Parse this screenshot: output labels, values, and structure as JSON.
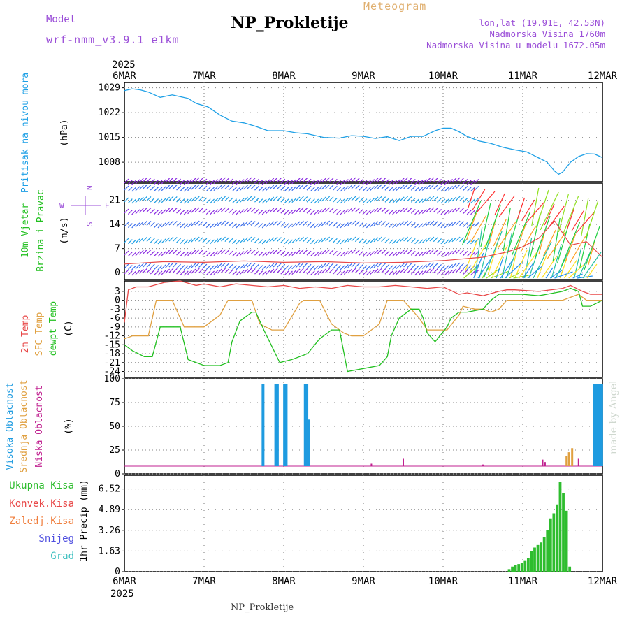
{
  "header": {
    "title": "NP_Prokletije",
    "subtitle": "Meteogram",
    "model_label": "Model",
    "model_name": "wrf-nmm_v3.9.1  e1km",
    "lonlat": "lon,lat (19.91E, 42.53N)",
    "elevation": "Nadmorska Visina 1760m",
    "model_elevation": "Nadmorska Visina u modelu 1672.05m",
    "footer": "NP_Prokletije",
    "watermark": "made by Angel"
  },
  "time_axis": {
    "year": "2025",
    "labels": [
      "6MAR",
      "7MAR",
      "8MAR",
      "9MAR",
      "10MAR",
      "11MAR",
      "12MAR"
    ]
  },
  "colors": {
    "pressure": "#1ea0e6",
    "temp2m": "#e84848",
    "sfc_temp": "#e0a040",
    "dewpoint": "#22c020",
    "high_cloud": "#1e9be0",
    "mid_cloud": "#e0a040",
    "low_cloud": "#c02090",
    "precip": "#2ebd2e",
    "wind_label": "#9b4fd8"
  },
  "chart_data": [
    {
      "type": "line",
      "panel": "pressure",
      "label_main": "Pritisak na nivou mora",
      "unit": "(hPa)",
      "yticks": [
        1029,
        1022,
        1015,
        1008
      ],
      "ylim": [
        1002.5,
        1030.5
      ],
      "x_days": [
        0,
        0.1,
        0.2,
        0.3,
        0.45,
        0.6,
        0.8,
        0.9,
        1.05,
        1.2,
        1.35,
        1.5,
        1.65,
        1.8,
        2.0,
        2.15,
        2.3,
        2.5,
        2.7,
        2.85,
        3.0,
        3.15,
        3.3,
        3.45,
        3.6,
        3.75,
        3.9,
        4.0,
        4.1,
        4.2,
        4.3,
        4.45,
        4.6,
        4.75,
        4.9,
        5.05,
        5.2,
        5.3,
        5.4,
        5.45,
        5.5,
        5.6,
        5.7,
        5.8,
        5.9,
        6.0
      ],
      "values": [
        1028.2,
        1028.7,
        1028.4,
        1027.8,
        1026.3,
        1027.0,
        1026.0,
        1024.6,
        1023.6,
        1021.3,
        1019.6,
        1019.1,
        1018.1,
        1016.9,
        1016.9,
        1016.3,
        1016.0,
        1015.0,
        1014.8,
        1015.5,
        1015.3,
        1014.7,
        1015.2,
        1014.1,
        1015.3,
        1015.3,
        1016.9,
        1017.6,
        1017.6,
        1016.6,
        1015.3,
        1014.0,
        1013.3,
        1012.2,
        1011.5,
        1010.9,
        1009.2,
        1008.1,
        1005.5,
        1004.6,
        1005.2,
        1008.0,
        1009.6,
        1010.4,
        1010.3,
        1009.3
      ]
    },
    {
      "type": "line",
      "panel": "wind",
      "label_main": "10m Vjetar",
      "label_sub": "Brzina i Pravac",
      "unit": "(m/s)",
      "compass": "N  W<-|->E  S",
      "yticks": [
        0,
        7,
        14,
        21
      ],
      "ylim": [
        -2,
        26
      ],
      "x_days": [
        0,
        0.5,
        1.0,
        1.5,
        2.0,
        2.5,
        3.0,
        3.5,
        4.0,
        4.5,
        4.8,
        5.0,
        5.2,
        5.4,
        5.6,
        5.8,
        6.0
      ],
      "values": [
        2.5,
        3.2,
        3.0,
        3.4,
        3.0,
        3.2,
        2.8,
        3.0,
        3.5,
        4.5,
        6.0,
        7.5,
        10.0,
        15.0,
        8.0,
        9.0,
        4.5
      ]
    },
    {
      "type": "line",
      "panel": "temperature",
      "series_labels": [
        "2m Temp",
        "SFC Temp",
        "dewpt Temp"
      ],
      "unit": "(C)",
      "yticks": [
        3,
        0,
        -3,
        -6,
        -9,
        -12,
        -15,
        -18,
        -21,
        -24
      ],
      "ylim": [
        -26,
        6.5
      ],
      "series": [
        {
          "name": "2m Temp",
          "x_days": [
            0,
            0.05,
            0.15,
            0.3,
            0.5,
            0.7,
            0.9,
            1.0,
            1.2,
            1.4,
            1.6,
            1.8,
            2.0,
            2.2,
            2.4,
            2.6,
            2.8,
            3.0,
            3.2,
            3.4,
            3.6,
            3.8,
            4.0,
            4.2,
            4.3,
            4.5,
            4.7,
            4.8,
            4.9,
            5.2,
            5.5,
            5.6,
            5.75,
            5.85,
            6.0
          ],
          "values": [
            -7.5,
            3.5,
            4.5,
            4.5,
            6.0,
            6.5,
            5.0,
            5.5,
            4.5,
            5.5,
            5.0,
            4.5,
            5.0,
            4.0,
            4.5,
            4.0,
            5.0,
            4.5,
            4.5,
            5.0,
            4.5,
            4.0,
            4.5,
            2.0,
            2.5,
            1.5,
            3.0,
            3.5,
            3.5,
            3.0,
            4.0,
            5.0,
            3.0,
            2.0,
            2.0
          ]
        },
        {
          "name": "SFC Temp",
          "x_days": [
            0,
            0.1,
            0.2,
            0.3,
            0.4,
            0.6,
            0.75,
            0.85,
            1.0,
            1.2,
            1.3,
            1.45,
            1.6,
            1.7,
            1.85,
            2.0,
            2.2,
            2.25,
            2.45,
            2.6,
            2.75,
            2.85,
            3.0,
            3.2,
            3.3,
            3.5,
            3.7,
            3.8,
            3.9,
            4.05,
            4.2,
            4.25,
            4.4,
            4.5,
            4.6,
            4.7,
            4.8,
            5.0,
            5.3,
            5.5,
            5.6,
            5.7,
            5.8,
            5.9,
            6.0
          ],
          "values": [
            -13,
            -12,
            -12,
            -12,
            0,
            0,
            -9,
            -9,
            -9,
            -5,
            0,
            0,
            0,
            -8,
            -10,
            -10,
            -1,
            0,
            0,
            -8,
            -11,
            -12,
            -12,
            -8,
            0,
            0,
            -6,
            -10,
            -10,
            -10,
            -5,
            -2,
            -3,
            -3,
            -4,
            -3,
            0,
            0,
            0,
            0,
            1,
            2,
            0,
            0,
            0
          ]
        },
        {
          "name": "dewpt Temp",
          "x_days": [
            0,
            0.1,
            0.25,
            0.35,
            0.45,
            0.6,
            0.7,
            0.8,
            1.0,
            1.2,
            1.3,
            1.35,
            1.45,
            1.6,
            1.65,
            1.75,
            1.95,
            2.1,
            2.2,
            2.3,
            2.45,
            2.6,
            2.7,
            2.8,
            3.0,
            3.2,
            3.3,
            3.35,
            3.45,
            3.6,
            3.7,
            3.75,
            3.8,
            3.9,
            4.05,
            4.1,
            4.2,
            4.3,
            4.5,
            4.6,
            4.7,
            4.8,
            5.0,
            5.2,
            5.3,
            5.5,
            5.6,
            5.7,
            5.75,
            5.85,
            6.0
          ],
          "values": [
            -15,
            -17,
            -19,
            -19,
            -9,
            -9,
            -9,
            -20,
            -22,
            -22,
            -21,
            -14,
            -7,
            -4,
            -4,
            -10,
            -21,
            -20,
            -19,
            -18,
            -13,
            -10,
            -10,
            -24,
            -23,
            -22,
            -19,
            -12,
            -6,
            -3,
            -3,
            -6,
            -11,
            -14,
            -9,
            -6,
            -4,
            -4,
            -3,
            0,
            2,
            2,
            2,
            1.5,
            2,
            3,
            4,
            3,
            -2,
            -2,
            0
          ]
        }
      ]
    },
    {
      "type": "bar",
      "panel": "clouds",
      "series_labels": [
        "Visoka Oblacnost",
        "Srednja Oblacnost",
        "Niska Oblacnost"
      ],
      "unit": "(%)",
      "yticks": [
        0,
        25,
        50,
        75,
        100
      ],
      "ylim": [
        0,
        100
      ],
      "series": [
        {
          "name": "Visoka Oblacnost",
          "x_days": [
            1.74,
            1.9,
            1.92,
            2.01,
            2.03,
            2.27,
            2.29,
            2.31,
            5.9,
            5.93,
            5.96,
            5.99
          ],
          "values": [
            100,
            100,
            100,
            100,
            100,
            100,
            100,
            57,
            100,
            100,
            100,
            100
          ]
        },
        {
          "name": "Srednja Oblacnost",
          "x_days": [
            5.55,
            5.58,
            5.62
          ],
          "values": [
            12,
            17,
            22
          ]
        },
        {
          "name": "Niska Oblacnost",
          "x_days": [
            3.1,
            3.5,
            4.5,
            5.25,
            5.28,
            5.7
          ],
          "values": [
            3,
            9,
            2,
            8,
            5,
            9
          ]
        }
      ]
    },
    {
      "type": "bar",
      "panel": "precipitation",
      "series_labels": [
        "Ukupna Kisa",
        "Konvek.Kisa",
        "Zaledj.Kisa",
        "Snijeg",
        "Grad"
      ],
      "unit": "1hr Precip (mm)",
      "yticks": [
        0,
        1.63,
        3.26,
        4.89,
        6.52
      ],
      "ylim": [
        0,
        7.6
      ],
      "series": [
        {
          "name": "Ukupna Kisa",
          "x_days": [
            4.83,
            4.87,
            4.91,
            4.95,
            4.99,
            5.03,
            5.07,
            5.11,
            5.15,
            5.19,
            5.23,
            5.27,
            5.31,
            5.35,
            5.39,
            5.43,
            5.47,
            5.51,
            5.55,
            5.59
          ],
          "values": [
            0.2,
            0.4,
            0.5,
            0.6,
            0.7,
            0.9,
            1.1,
            1.6,
            1.9,
            2.1,
            2.3,
            2.7,
            3.3,
            4.2,
            4.6,
            5.3,
            7.1,
            6.2,
            4.8,
            0.4
          ]
        }
      ]
    }
  ]
}
